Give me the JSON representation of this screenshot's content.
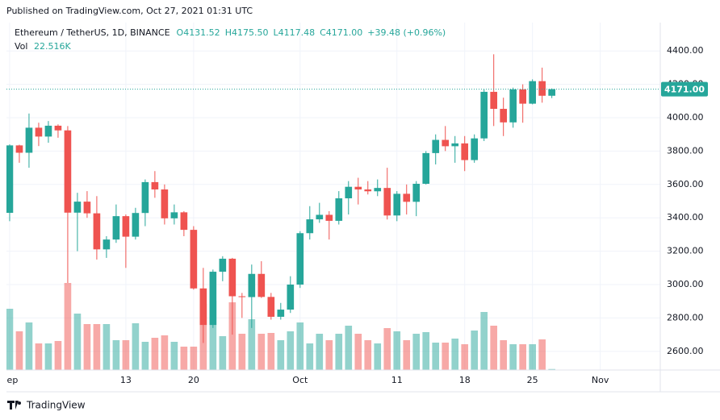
{
  "header": "Published on TradingView.com, Oct 27, 2021 01:31 UTC",
  "footer": "TradingView",
  "chart_data": {
    "type": "candlestick",
    "legend": {
      "symbol": "Ethereum / TetherUS, 1D, BINANCE",
      "open": "O4131.52",
      "high": "H4175.50",
      "low": "L4117.48",
      "close": "C4171.00",
      "change": "+39.48 (+0.96%)",
      "volume_name": "Vol",
      "volume": "22.516K"
    },
    "last_price_label": "4171.00",
    "up_color": "#26a69a",
    "down_color": "#ef5350",
    "x": [
      1,
      2,
      3,
      4,
      5,
      6,
      7,
      8,
      9,
      10,
      11,
      12,
      13,
      14,
      15,
      16,
      17,
      18,
      19,
      20,
      21,
      22,
      23,
      24,
      25,
      26,
      27,
      28,
      29,
      30,
      31,
      32,
      33,
      34,
      35,
      36,
      37,
      38,
      39,
      40,
      41,
      42,
      43,
      44,
      45,
      46,
      47,
      48,
      49,
      50,
      51,
      52,
      53,
      54,
      55,
      56,
      57
    ],
    "open": [
      3430,
      3834,
      3790,
      3940,
      3887,
      3952,
      3924,
      3431,
      3497,
      3427,
      3211,
      3270,
      3410,
      3287,
      3429,
      3614,
      3570,
      3397,
      3433,
      3328,
      2977,
      2758,
      3077,
      3155,
      2930,
      2925,
      3064,
      2926,
      2807,
      2850,
      3000,
      3308,
      3391,
      3418,
      3382,
      3517,
      3586,
      3570,
      3559,
      3579,
      3414,
      3544,
      3496,
      3604,
      3788,
      3867,
      3829,
      3846,
      3746,
      3876,
      4155,
      4053,
      3972,
      4170,
      4084,
      4219,
      4131.52
    ],
    "high": [
      3840,
      3838,
      4025,
      3970,
      3980,
      3960,
      3950,
      3550,
      3560,
      3530,
      3290,
      3480,
      3420,
      3460,
      3630,
      3680,
      3600,
      3480,
      3440,
      3350,
      3100,
      3090,
      3170,
      3160,
      2950,
      3120,
      3140,
      2950,
      2890,
      3050,
      3320,
      3470,
      3490,
      3440,
      3560,
      3620,
      3640,
      3620,
      3630,
      3700,
      3560,
      3600,
      3620,
      3800,
      3900,
      3950,
      3890,
      3890,
      3900,
      4170,
      4380,
      4120,
      4180,
      4200,
      4230,
      4300,
      4175.5
    ],
    "low": [
      3380,
      3730,
      3700,
      3830,
      3850,
      3880,
      3010,
      3200,
      3400,
      3150,
      3160,
      3250,
      3100,
      3270,
      3350,
      3520,
      3360,
      3360,
      3290,
      2970,
      2650,
      2740,
      3020,
      2700,
      2800,
      2740,
      2920,
      2790,
      2790,
      2830,
      2980,
      3270,
      3370,
      3270,
      3360,
      3420,
      3480,
      3540,
      3530,
      3390,
      3380,
      3420,
      3410,
      3600,
      3720,
      3800,
      3730,
      3680,
      3730,
      3860,
      3950,
      3890,
      3940,
      3970,
      4080,
      4090,
      4117.48
    ],
    "close": [
      3834,
      3790,
      3940,
      3887,
      3952,
      3924,
      3431,
      3497,
      3427,
      3211,
      3270,
      3410,
      3287,
      3429,
      3614,
      3570,
      3397,
      3433,
      3328,
      2977,
      2758,
      3077,
      3155,
      2930,
      2925,
      3064,
      2926,
      2807,
      2850,
      3000,
      3308,
      3391,
      3418,
      3382,
      3517,
      3586,
      3570,
      3559,
      3579,
      3414,
      3544,
      3496,
      3604,
      3788,
      3867,
      3829,
      3846,
      3746,
      3876,
      4155,
      4053,
      3972,
      4170,
      4084,
      4219,
      4131.52,
      4171
    ],
    "volume": [
      1368000,
      864000,
      1062000,
      594000,
      594000,
      648000,
      1944000,
      1260000,
      1026000,
      1026000,
      1026000,
      666000,
      666000,
      1044000,
      630000,
      720000,
      774000,
      630000,
      522000,
      522000,
      1476000,
      1548000,
      756000,
      1512000,
      810000,
      1134000,
      810000,
      828000,
      666000,
      864000,
      1062000,
      594000,
      810000,
      666000,
      810000,
      990000,
      810000,
      666000,
      594000,
      936000,
      864000,
      666000,
      810000,
      846000,
      612000,
      612000,
      702000,
      576000,
      882000,
      1296000,
      990000,
      666000,
      576000,
      576000,
      576000,
      684000,
      22516
    ],
    "xlim": [
      0.67,
      68.2
    ],
    "xticks": [
      {
        "value": 1,
        "label": "Sep"
      },
      13,
      20,
      {
        "value": 31,
        "label": "Oct"
      },
      {
        "value": 41,
        "label": "11"
      },
      {
        "value": 48,
        "label": "18"
      },
      {
        "value": 55,
        "label": "25"
      },
      {
        "value": 62,
        "label": "Nov"
      }
    ],
    "ylim": [
      2488,
      4570
    ],
    "yticks": [
      {
        "value": 2600,
        "label": "2600.00"
      },
      {
        "value": 2800,
        "label": "2800.00"
      },
      {
        "value": 3000,
        "label": "3000.00"
      },
      {
        "value": 3200,
        "label": "3200.00"
      },
      {
        "value": 3400,
        "label": "3400.00"
      },
      {
        "value": 3600,
        "label": "3600.00"
      },
      {
        "value": 3800,
        "label": "3800.00"
      },
      {
        "value": 4000,
        "label": "4000.00"
      },
      {
        "value": 4200,
        "label": "4200.00"
      },
      {
        "value": 4400,
        "label": "4400.00"
      }
    ],
    "grid": true
  }
}
